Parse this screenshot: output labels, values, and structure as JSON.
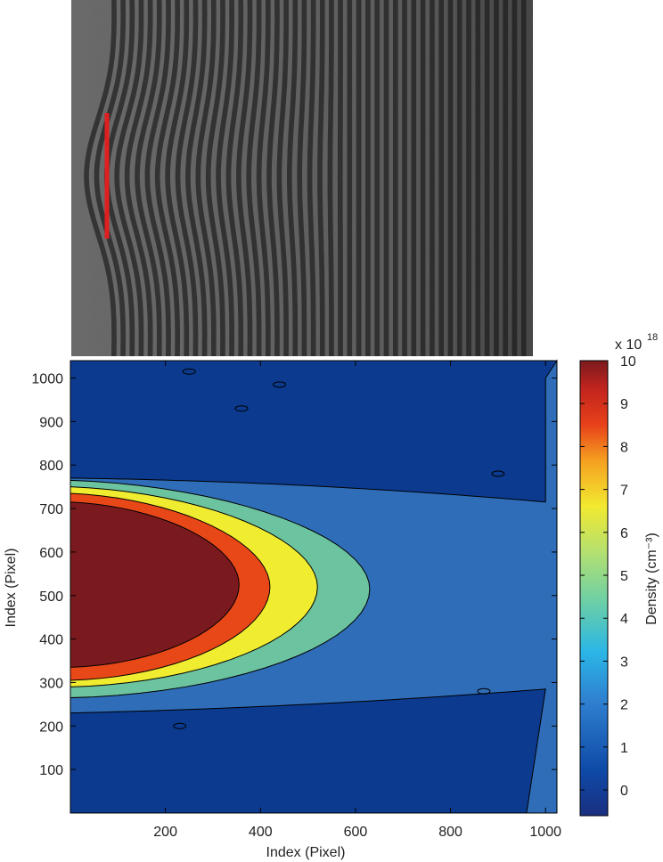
{
  "chart_data": [
    {
      "type": "image",
      "description_role": "interferogram",
      "fringe_count": 46,
      "marker": {
        "type": "vertical-line",
        "color": "#e02020"
      }
    },
    {
      "type": "heatmap",
      "style": "filled-contour",
      "colormap": "jet",
      "xlabel": "Index (Pixel)",
      "ylabel": "Index (Pixel)",
      "x_ticks": [
        200,
        400,
        600,
        800,
        1000
      ],
      "y_ticks": [
        100,
        200,
        300,
        400,
        500,
        600,
        700,
        800,
        900,
        1000
      ],
      "xlim": [
        0,
        1024
      ],
      "ylim": [
        0,
        1040
      ],
      "colorbar": {
        "label": "Density (cm⁻³)",
        "multiplier": "x 10",
        "exponent": "18",
        "ticks": [
          0,
          1,
          2,
          3,
          4,
          5,
          6,
          7,
          8,
          9,
          10
        ],
        "range": [
          -0.6,
          10
        ]
      },
      "contour_levels": [
        {
          "level": 2,
          "color": "#2f6db8",
          "tip_x": 1000,
          "half_width": 270,
          "center": 500
        },
        {
          "level": 4,
          "color": "#6cc3a0",
          "tip_x": 630,
          "half_width": 250,
          "center": 515
        },
        {
          "level": 6,
          "color": "#f0ec30",
          "tip_x": 520,
          "half_width": 230,
          "center": 520
        },
        {
          "level": 8,
          "color": "#e84818",
          "tip_x": 420,
          "half_width": 215,
          "center": 520
        },
        {
          "level": 10,
          "color": "#7a1a1e",
          "tip_x": 355,
          "half_width": 190,
          "center": 525
        }
      ],
      "background_color": "#0b3a8f"
    }
  ]
}
